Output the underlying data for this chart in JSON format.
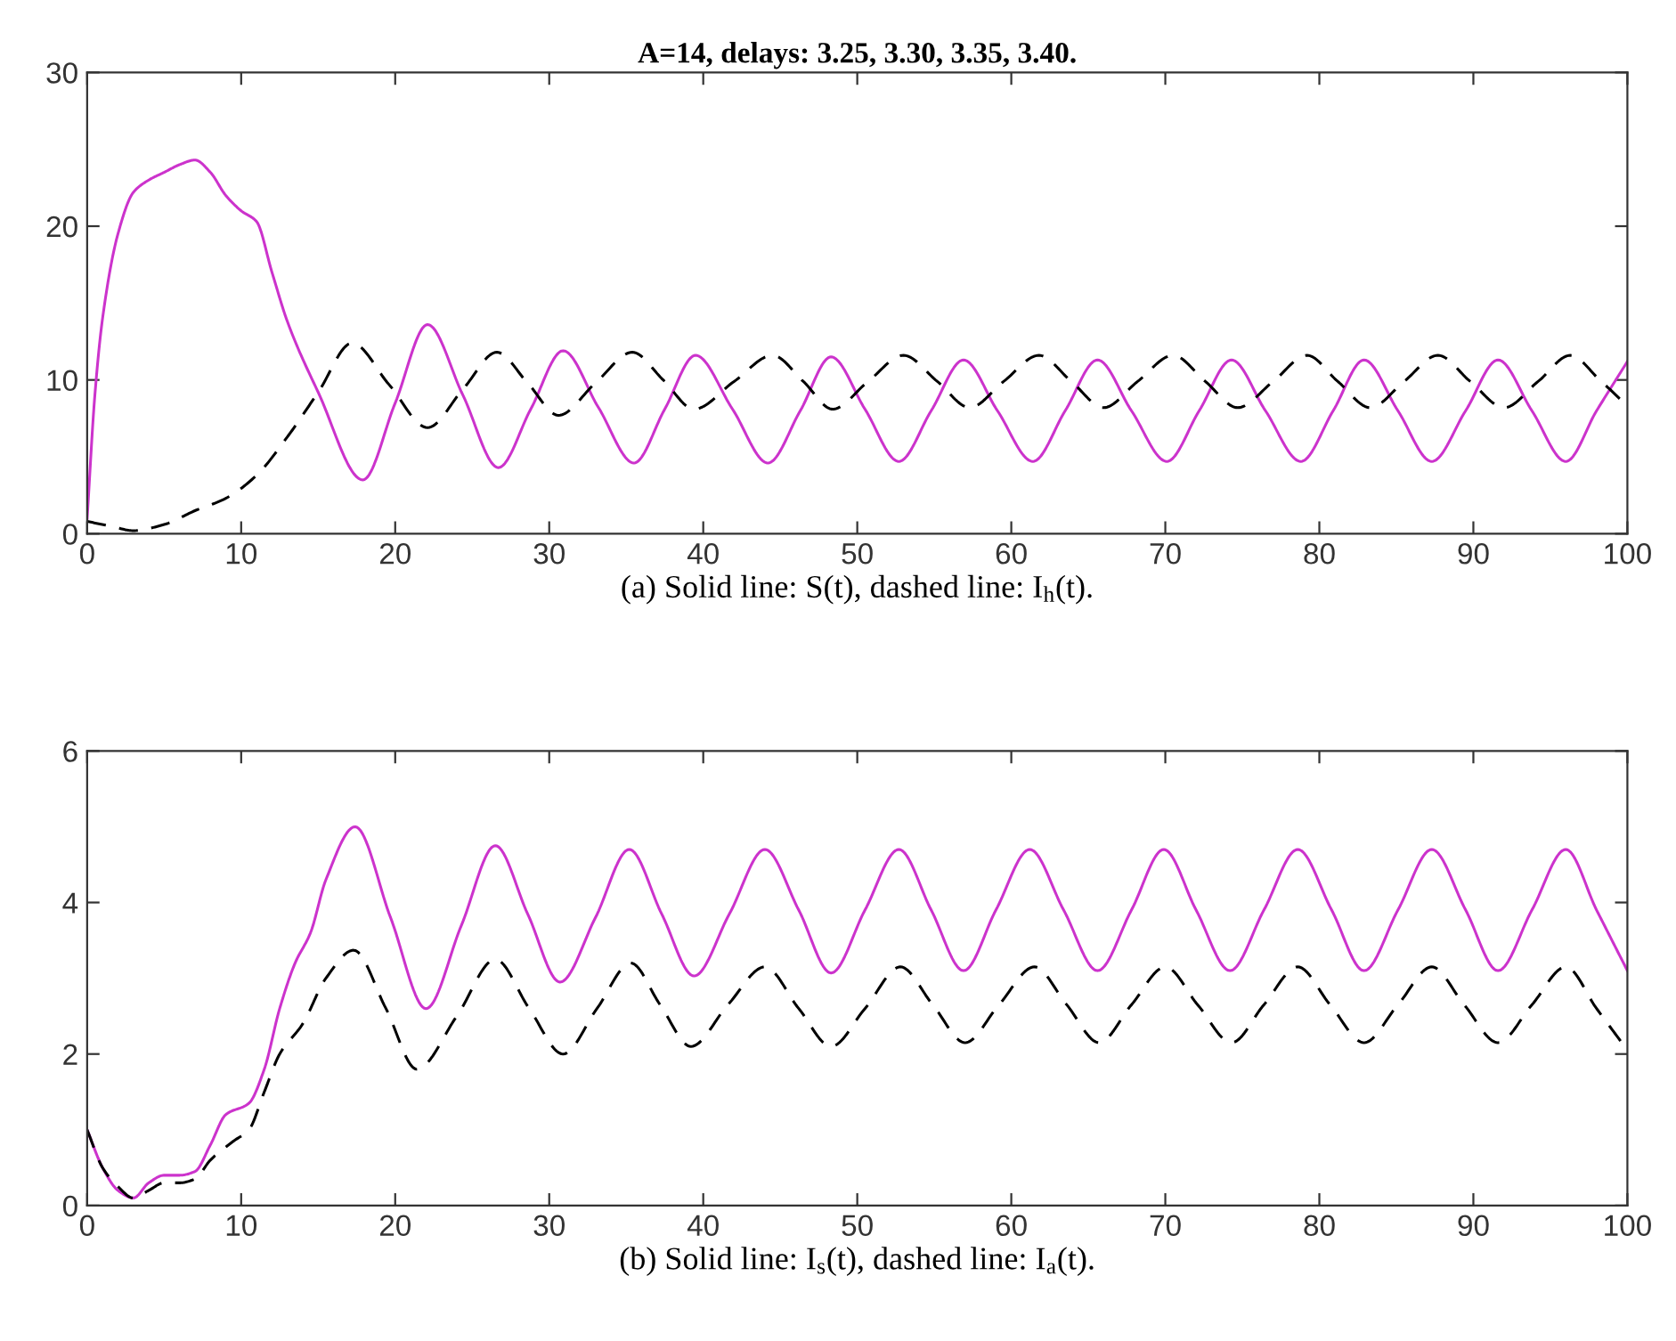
{
  "chart_data": [
    {
      "type": "line",
      "title": "A=14, delays: 3.25, 3.30, 3.35, 3.40.",
      "xlabel": "(a) Solid line: S(t), dashed line: I$_{h}$(t).",
      "xlim": [
        0,
        100
      ],
      "xticks": [
        0,
        10,
        20,
        30,
        40,
        50,
        60,
        70,
        80,
        90,
        100
      ],
      "ylim": [
        0,
        30
      ],
      "yticks": [
        0,
        10,
        20,
        30
      ],
      "grid": false,
      "marker": "none",
      "series": [
        {
          "color": "#cc33cc",
          "line_style": "solid",
          "x": [
            0,
            0.5,
            1,
            2,
            3,
            4,
            5,
            6,
            7,
            8,
            9,
            10,
            11,
            12,
            13,
            15,
            17.9,
            20,
            22.1,
            24.4,
            26.7,
            28.8,
            30.9,
            33.2,
            35.5,
            37.5,
            39.5,
            41.9,
            44.2,
            46.3,
            48.3,
            50.5,
            52.7,
            54.8,
            56.9,
            59.1,
            61.4,
            63.5,
            65.6,
            67.8,
            70.1,
            72.2,
            74.3,
            76.5,
            78.8,
            80.9,
            82.9,
            85.1,
            87.3,
            89.5,
            91.6,
            93.8,
            96,
            98,
            100
          ],
          "values": [
            1.0,
            9,
            14,
            19.5,
            22.2,
            23,
            23.5,
            24,
            24.3,
            23.5,
            22,
            21,
            20.3,
            17,
            13.8,
            9.2,
            3.5,
            8.5,
            13.6,
            9,
            4.3,
            8.1,
            11.9,
            8.2,
            4.6,
            8.1,
            11.6,
            8.1,
            4.6,
            8,
            11.5,
            8.1,
            4.7,
            8,
            11.3,
            8,
            4.7,
            8,
            11.3,
            8,
            4.7,
            8,
            11.3,
            8,
            4.7,
            8,
            11.3,
            8,
            4.7,
            8,
            11.3,
            8,
            4.7,
            8,
            11.2
          ]
        },
        {
          "color": "#000000",
          "line_style": "dashed",
          "x": [
            0,
            1.5,
            3,
            5,
            7,
            9,
            11,
            13,
            15,
            17.2,
            19.6,
            22.1,
            24.4,
            26.6,
            28.6,
            30.6,
            33,
            35.4,
            37.4,
            39.4,
            42,
            44.5,
            46.5,
            48.4,
            50.7,
            53,
            55.2,
            57.3,
            59.5,
            61.8,
            63.9,
            66,
            68.2,
            70.5,
            72.6,
            74.7,
            77,
            79.2,
            81.2,
            83.3,
            85.5,
            87.7,
            89.8,
            92,
            94.2,
            96.3,
            98.2,
            100
          ],
          "values": [
            0.8,
            0.5,
            0.2,
            0.6,
            1.5,
            2.3,
            3.8,
            6.3,
            9.2,
            12.4,
            9.7,
            6.9,
            9.4,
            11.8,
            9.8,
            7.7,
            9.8,
            11.8,
            10,
            8.1,
            9.9,
            11.6,
            9.9,
            8.1,
            9.9,
            11.6,
            9.9,
            8.2,
            9.9,
            11.6,
            9.9,
            8.2,
            9.9,
            11.6,
            9.9,
            8.2,
            9.9,
            11.6,
            9.9,
            8.2,
            9.9,
            11.6,
            9.9,
            8.2,
            9.9,
            11.6,
            10,
            8.3
          ]
        }
      ]
    },
    {
      "type": "line",
      "xlabel": "(b) Solid line: I$_{s}$(t), dashed line: I$_{a}$(t).",
      "xlim": [
        0,
        100
      ],
      "xticks": [
        0,
        10,
        20,
        30,
        40,
        50,
        60,
        70,
        80,
        90,
        100
      ],
      "ylim": [
        0,
        6
      ],
      "yticks": [
        0,
        2,
        4,
        6
      ],
      "grid": false,
      "marker": "none",
      "series": [
        {
          "color": "#cc33cc",
          "line_style": "solid",
          "x": [
            0,
            1,
            2,
            3,
            4,
            5,
            6,
            7,
            8,
            9,
            10.5,
            11.5,
            12.5,
            13.5,
            14.5,
            15.5,
            17.4,
            19.7,
            22,
            24.3,
            26.5,
            28.6,
            30.7,
            33,
            35.2,
            37.3,
            39.4,
            41.7,
            44,
            46.2,
            48.3,
            50.5,
            52.7,
            54.8,
            56.9,
            59,
            61.2,
            63.4,
            65.6,
            67.8,
            69.9,
            72,
            74.2,
            76.4,
            78.6,
            80.8,
            82.9,
            85.1,
            87.3,
            89.5,
            91.6,
            93.8,
            96,
            98,
            100
          ],
          "values": [
            1.0,
            0.5,
            0.2,
            0.1,
            0.3,
            0.4,
            0.4,
            0.45,
            0.8,
            1.2,
            1.35,
            1.8,
            2.6,
            3.2,
            3.6,
            4.3,
            5.0,
            3.8,
            2.6,
            3.7,
            4.75,
            3.85,
            2.95,
            3.8,
            4.7,
            3.85,
            3.03,
            3.85,
            4.7,
            3.9,
            3.07,
            3.9,
            4.7,
            3.9,
            3.1,
            3.9,
            4.7,
            3.9,
            3.1,
            3.9,
            4.7,
            3.9,
            3.1,
            3.9,
            4.7,
            3.9,
            3.1,
            3.9,
            4.7,
            3.9,
            3.1,
            3.9,
            4.7,
            3.9,
            3.1
          ]
        },
        {
          "color": "#000000",
          "line_style": "dashed",
          "x": [
            0,
            1,
            2,
            3,
            4,
            5,
            6,
            7,
            8,
            9.5,
            10.5,
            11.5,
            12.5,
            14,
            15.5,
            17.3,
            19.4,
            21.4,
            24,
            26.5,
            28.7,
            30.9,
            33.1,
            35.3,
            37.2,
            39.2,
            41.6,
            44,
            46.2,
            48.3,
            50.5,
            52.8,
            54.9,
            57,
            59.2,
            61.5,
            63.6,
            65.7,
            67.8,
            70,
            72.1,
            74.3,
            76.4,
            78.6,
            80.7,
            82.9,
            85.1,
            87.3,
            89.4,
            91.6,
            93.8,
            96,
            98,
            100
          ],
          "values": [
            1.0,
            0.5,
            0.25,
            0.1,
            0.2,
            0.3,
            0.3,
            0.35,
            0.6,
            0.85,
            1.0,
            1.5,
            2.0,
            2.4,
            3.0,
            3.37,
            2.6,
            1.8,
            2.5,
            3.25,
            2.6,
            2.0,
            2.6,
            3.2,
            2.65,
            2.1,
            2.65,
            3.15,
            2.6,
            2.1,
            2.6,
            3.15,
            2.65,
            2.15,
            2.65,
            3.15,
            2.65,
            2.15,
            2.65,
            3.15,
            2.65,
            2.15,
            2.65,
            3.15,
            2.65,
            2.15,
            2.65,
            3.15,
            2.65,
            2.15,
            2.65,
            3.15,
            2.6,
            2.05
          ]
        }
      ]
    }
  ]
}
